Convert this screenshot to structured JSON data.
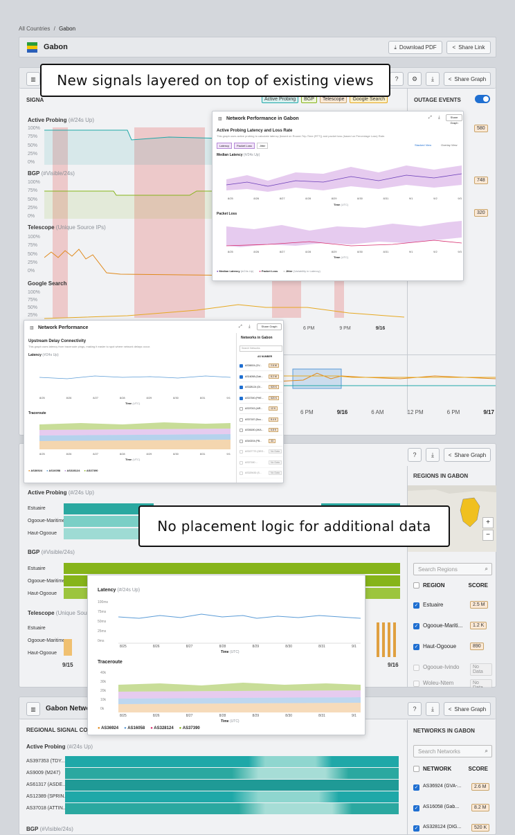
{
  "breadcrumb": {
    "root": "All Countries",
    "sep": "/",
    "current": "Gabon"
  },
  "country": {
    "name": "Gabon"
  },
  "top_buttons": {
    "download": "Download PDF",
    "share": "Share Link"
  },
  "callouts": {
    "top": "New signals layered on top of existing views",
    "middle": "No placement logic for additional data"
  },
  "card1": {
    "header_right": {
      "help": "?",
      "share": "Share Graph"
    },
    "signals_label": "SIGNA",
    "legend_pills": [
      "Active Probing",
      "BGP",
      "Telescope",
      "Google Search"
    ],
    "outage_label": "OUTAGE EVENTS",
    "outage_badges": [
      "580",
      "748",
      "320"
    ],
    "series": [
      {
        "name": "Active Probing",
        "unit": "(#/24s Up)"
      },
      {
        "name": "BGP",
        "unit": "(#Visible/24s)"
      },
      {
        "name": "Telescope",
        "unit": "(Unique Source IPs)"
      },
      {
        "name": "Google Search",
        "unit": ""
      }
    ],
    "pct_ticks": [
      "100%",
      "75%",
      "50%",
      "25%",
      "0%"
    ],
    "time_ticks_a": [
      "6 PM",
      "9 PM",
      "9/16"
    ],
    "time_ticks_b": [
      "6 PM",
      "9/16",
      "6 AM",
      "12 PM",
      "6 PM",
      "9/17"
    ]
  },
  "popup1": {
    "title": "Network Performance in Gabon",
    "share": "Share Graph",
    "subtitle": "Active Probing Latency and Loss Rate",
    "desc": "This graph uses active probing to calculate latency (based on Round-Trip-Time (RTT)) and packet loss (based on Percentage Loss) Rate.",
    "filters": [
      "Latency",
      "Packet Loss",
      "Jitter"
    ],
    "views": [
      "Stacked View",
      "Overlay View"
    ],
    "median_label": "Median Latency",
    "median_unit": "(#/24s Up)",
    "loss_label": "Packet Loss",
    "dates": [
      "8/25",
      "8/26",
      "8/27",
      "8/28",
      "8/29",
      "8/30",
      "8/31",
      "9/1",
      "9/2",
      "9/3"
    ],
    "time_label": "Time",
    "time_unit": "(UTC)",
    "legend": [
      "Median Latency",
      "Packet Loss",
      "Jitter"
    ],
    "legend_units": [
      "(#/24s Up)",
      "",
      "(Variability in Latency)"
    ]
  },
  "popup2": {
    "title": "Network Performance",
    "share": "Share Graph",
    "subtitle": "Upstream Delay Connectivity",
    "desc": "This graph uses latency from traceroute pings, making it easier to spot where network delays occur.",
    "latency_label": "Latency",
    "latency_unit": "(#/24s Up)",
    "traceroute_label": "Traceroute",
    "dates": [
      "8/25",
      "8/26",
      "8/27",
      "8/28",
      "8/29",
      "8/30",
      "8/31",
      "9/1"
    ],
    "time_label": "Time",
    "time_unit": "(UTC)",
    "legend": [
      "AS36924",
      "AS16058",
      "AS328124",
      "AS37390"
    ],
    "networks_title": "Networks in Gabon",
    "search_placeholder": "Search Networks",
    "col": "AS NUMBER",
    "networks": [
      {
        "name": "AS36924 (GV...",
        "val": "2.6 M",
        "on": true
      },
      {
        "name": "AS16058 (Gab...",
        "val": "8.2 M",
        "on": true
      },
      {
        "name": "AS328124 (DI...",
        "val": "520 K",
        "on": true
      },
      {
        "name": "AS37390 (PHE...",
        "val": "520 K",
        "on": true
      },
      {
        "name": "AS37002 (AIR...",
        "val": "12 K",
        "on": false
      },
      {
        "name": "AS37187 (Bou...",
        "val": "8.4 K",
        "on": false
      },
      {
        "name": "AS36180 (AKA...",
        "val": "6.8 K",
        "on": false
      },
      {
        "name": "AS40204 (PB...",
        "val": "33",
        "on": false
      },
      {
        "name": "AS327770 (GEO...",
        "val": "No Data",
        "on": false
      },
      {
        "name": "AS37180 ...",
        "val": "No Data",
        "on": false
      },
      {
        "name": "AS329430 (S...",
        "val": "No Data",
        "on": false
      }
    ]
  },
  "card2": {
    "share": "Share Graph",
    "regions_title": "REGIONS IN GABON",
    "search_placeholder": "Search Regions",
    "col_region": "REGION",
    "col_score": "SCORE",
    "regions": [
      {
        "name": "Estuaire",
        "val": "2.5 M",
        "on": true
      },
      {
        "name": "Ogooue-Mariti...",
        "val": "1.2 K",
        "on": true
      },
      {
        "name": "Haut-Ogooue",
        "val": "890",
        "on": true
      },
      {
        "name": "Ogooue-Ivindo",
        "val": "No Data",
        "on": false
      },
      {
        "name": "Woleu-Ntem",
        "val": "No Data",
        "on": false
      }
    ],
    "map_zoom": [
      "+",
      "−"
    ],
    "ap_label": "Active Probing",
    "ap_unit": "(#/24s Up)",
    "bgp_label": "BGP",
    "bgp_unit": "(#Visible/24s)",
    "tel_label": "Telescope",
    "tel_unit": "(Unique Source",
    "rows": [
      "Estuaire",
      "Ogooue-Maritime",
      "Haut-Ogooue"
    ],
    "time_ticks": [
      "9/15",
      "9/16"
    ]
  },
  "popup3": {
    "latency_label": "Latency",
    "latency_unit": "(#/24s Up)",
    "lat_ticks": [
      "100ms",
      "75ms",
      "50ms",
      "25ms",
      "0ms"
    ],
    "traceroute_label": "Traceroute",
    "trace_ticks": [
      "40k",
      "30k",
      "20k",
      "10k",
      "0k"
    ],
    "dates": [
      "8/25",
      "8/26",
      "8/27",
      "8/28",
      "8/29",
      "8/30",
      "8/31",
      "9/1"
    ],
    "time_label": "Time",
    "time_unit": "(UTC)",
    "legend": [
      "AS36924",
      "AS16058",
      "AS328124",
      "AS37390"
    ]
  },
  "card3": {
    "title": "Gabon Network C",
    "share": "Share Graph",
    "section_label": "REGIONAL SIGNAL CONNE",
    "networks_title": "NETWORKS IN GABON",
    "search_placeholder": "Search Networks",
    "col_network": "NETWORK",
    "col_score": "SCORE",
    "networks": [
      {
        "name": "AS36924 (GVA-...",
        "val": "2.6 M"
      },
      {
        "name": "AS16058 (Gab...",
        "val": "8.2 M"
      },
      {
        "name": "AS328124 (DIG...",
        "val": "520 K"
      }
    ],
    "ap_label": "Active Probing",
    "ap_unit": "(#/24s Up)",
    "rows": [
      "AS397353 (TDY...",
      "AS9009 (M247)",
      "AS61317 (ASDE...",
      "AS12389 (SPRIN...",
      "AS37018 (ATTIN..."
    ],
    "bgp_label": "BGP",
    "bgp_unit": "(#Visible/24s)"
  },
  "colors": {
    "teal": "#1fa8a8",
    "green": "#86b41a",
    "orange": "#e0891a",
    "gold": "#e6a820",
    "red": "#e8a0a0",
    "purple": "#b48ad6",
    "blue": "#5a9bd6",
    "accent": "#1f6fd1"
  }
}
